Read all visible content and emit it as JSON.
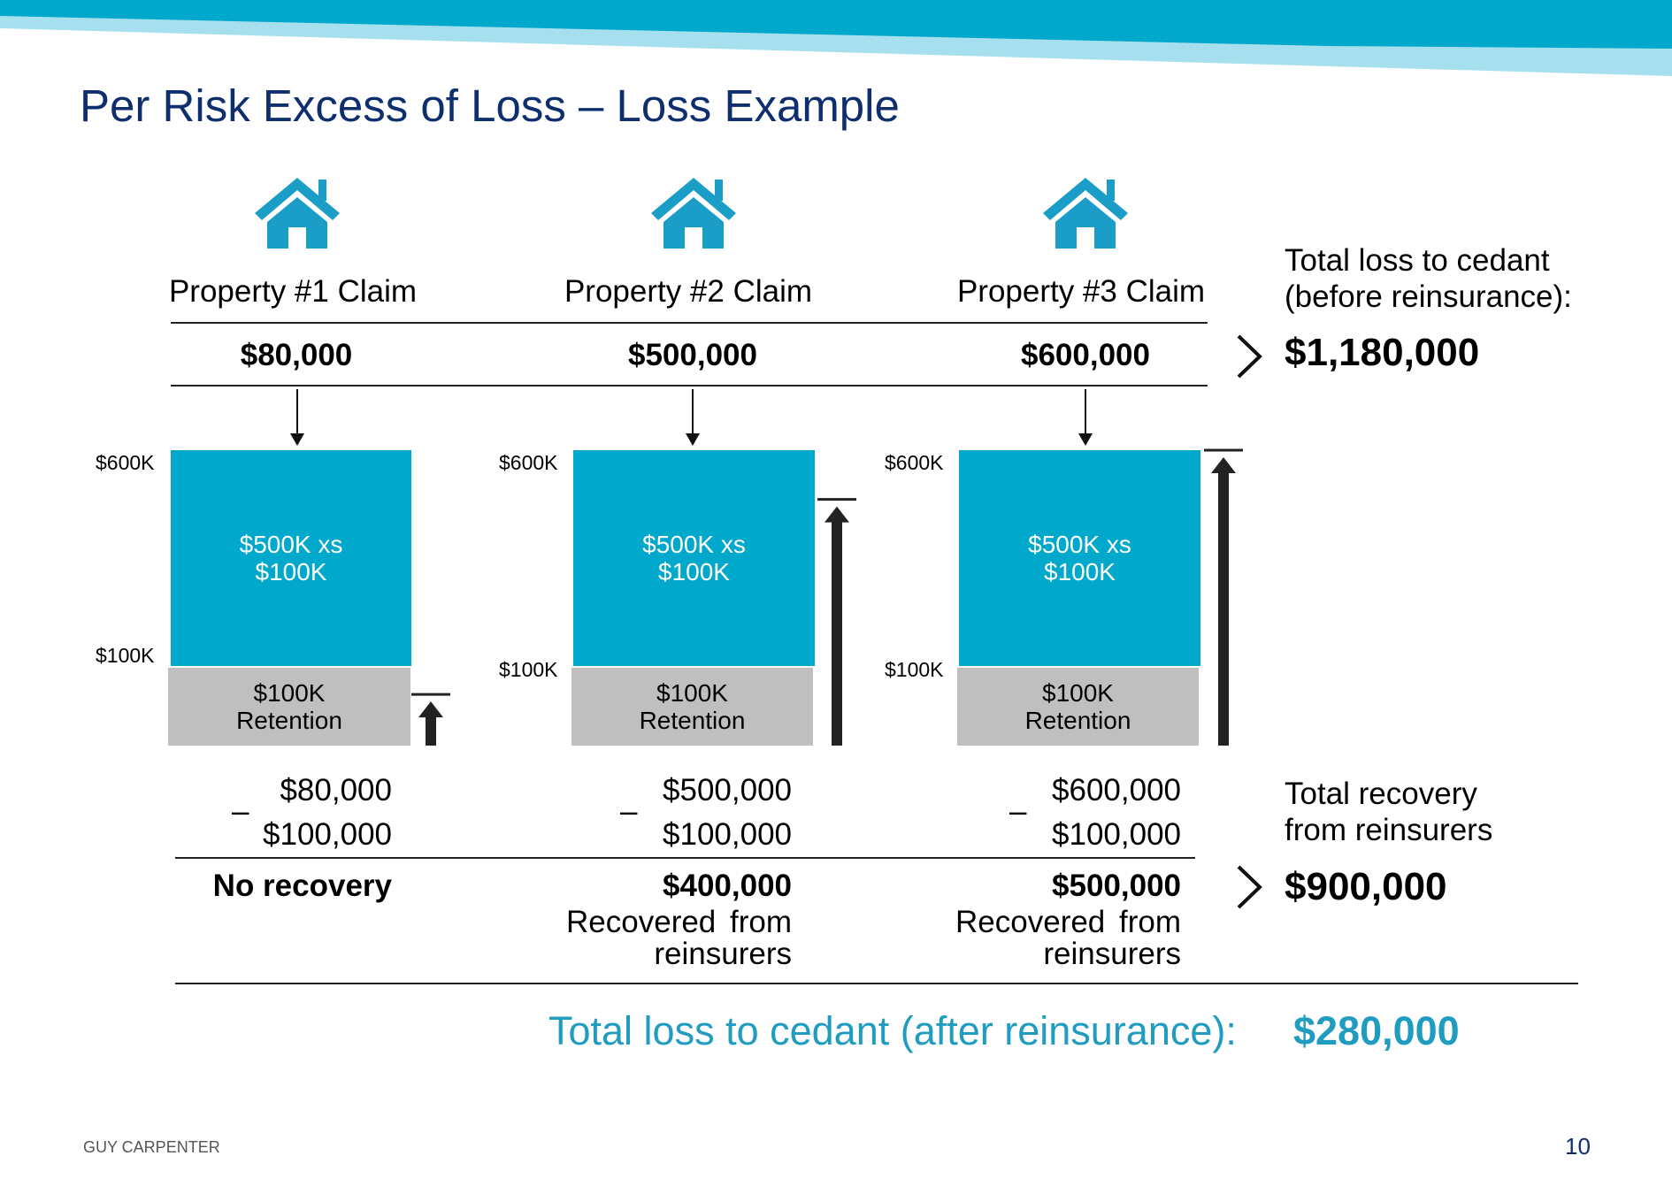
{
  "slide": {
    "title": "Per Risk Excess of Loss – Loss Example",
    "footer": "GUY CARPENTER",
    "page_number": "10"
  },
  "colors": {
    "accent": "#00a8cb",
    "title": "#0e2e6e",
    "retention": "#bfbfbf",
    "after_total": "#1f9cc0"
  },
  "properties": [
    {
      "label": "Property #1 Claim",
      "amount": "$80,000",
      "level_top": "$600K",
      "level_bottom": "$100K",
      "layer_label": "$500K xs\n$100K",
      "retention_label": "$100K\nRetention",
      "calc_loss": "$80,000",
      "calc_retention": "$100,000",
      "minus": "–",
      "result": "No recovery",
      "result_note": "",
      "loss_value": 80000
    },
    {
      "label": "Property #2 Claim",
      "amount": "$500,000",
      "level_top": "$600K",
      "level_bottom": "$100K",
      "layer_label": "$500K xs\n$100K",
      "retention_label": "$100K\nRetention",
      "calc_loss": "$500,000",
      "calc_retention": "$100,000",
      "minus": "–",
      "result": "$400,000",
      "result_note": "Recovered from\nreinsurers",
      "loss_value": 500000
    },
    {
      "label": "Property #3 Claim",
      "amount": "$600,000",
      "level_top": "$600K",
      "level_bottom": "$100K",
      "layer_label": "$500K xs\n$100K",
      "retention_label": "$100K\nRetention",
      "calc_loss": "$600,000",
      "calc_retention": "$100,000",
      "minus": "–",
      "result": "$500,000",
      "result_note": "Recovered from\nreinsurers",
      "loss_value": 600000
    }
  ],
  "totals": {
    "before_label": "Total loss to cedant\n(before reinsurance):",
    "before_value": "$1,180,000",
    "recovery_label": "Total recovery\nfrom reinsurers",
    "recovery_value": "$900,000",
    "after_label": "Total loss to cedant (after reinsurance):",
    "after_value": "$280,000"
  },
  "icons": {
    "house": "house-icon",
    "arrow": "arrow-down-icon",
    "chevron": "chevron-right-icon",
    "loss_bar": "loss-arrow-up-icon"
  }
}
